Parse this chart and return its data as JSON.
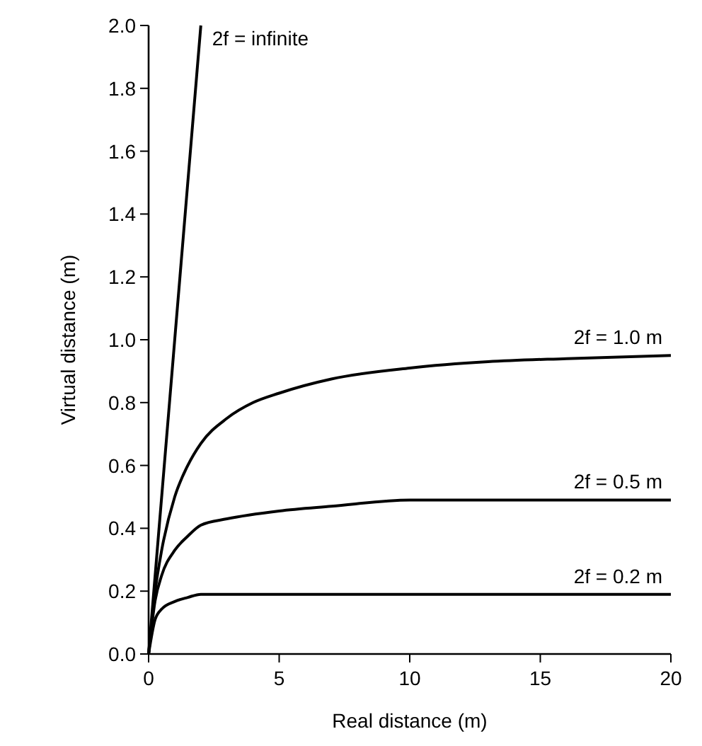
{
  "chart_data": {
    "type": "line",
    "xlabel": "Real distance (m)",
    "ylabel": "Virtual distance (m)",
    "xlim": [
      0,
      20
    ],
    "ylim": [
      0,
      2
    ],
    "xticks": [
      0,
      5,
      10,
      15,
      20
    ],
    "yticks": [
      {
        "value": 0,
        "label": "0.0"
      },
      {
        "value": 0.2,
        "label": "0.2"
      },
      {
        "value": 0.4,
        "label": "0.4"
      },
      {
        "value": 0.6,
        "label": "0.6"
      },
      {
        "value": 0.8,
        "label": "0.8"
      },
      {
        "value": 1,
        "label": "1.0"
      },
      {
        "value": 1.2,
        "label": "1.2"
      },
      {
        "value": 1.4,
        "label": "1.4"
      },
      {
        "value": 1.6,
        "label": "1.6"
      },
      {
        "value": 1.8,
        "label": "1.8"
      },
      {
        "value": 2,
        "label": "2.0"
      }
    ],
    "grid": false,
    "marker": "none",
    "line_style": "solid",
    "series": [
      {
        "name": "2f = infinite",
        "color": "#000000",
        "x": [
          0,
          2
        ],
        "values": [
          0,
          2
        ]
      },
      {
        "name": "2f = 1.0 m",
        "color": "#000000",
        "x": [
          0,
          0.25,
          0.5,
          1,
          1.5,
          2,
          3,
          4,
          5,
          7,
          10,
          13,
          16,
          20
        ],
        "values": [
          0,
          0.2,
          0.33,
          0.5,
          0.6,
          0.67,
          0.75,
          0.8,
          0.83,
          0.875,
          0.91,
          0.93,
          0.94,
          0.95
        ]
      },
      {
        "name": "2f = 0.5 m",
        "color": "#000000",
        "x": [
          0,
          0.25,
          0.5,
          1,
          1.5,
          2,
          3,
          5,
          7,
          10,
          20
        ],
        "values": [
          0,
          0.17,
          0.25,
          0.33,
          0.375,
          0.41,
          0.43,
          0.455,
          0.47,
          0.49,
          0.49
        ]
      },
      {
        "name": "2f = 0.2 m",
        "color": "#000000",
        "x": [
          0,
          0.25,
          0.5,
          1,
          1.5,
          2,
          20
        ],
        "values": [
          0,
          0.11,
          0.143,
          0.167,
          0.18,
          0.19,
          0.19
        ]
      }
    ]
  }
}
